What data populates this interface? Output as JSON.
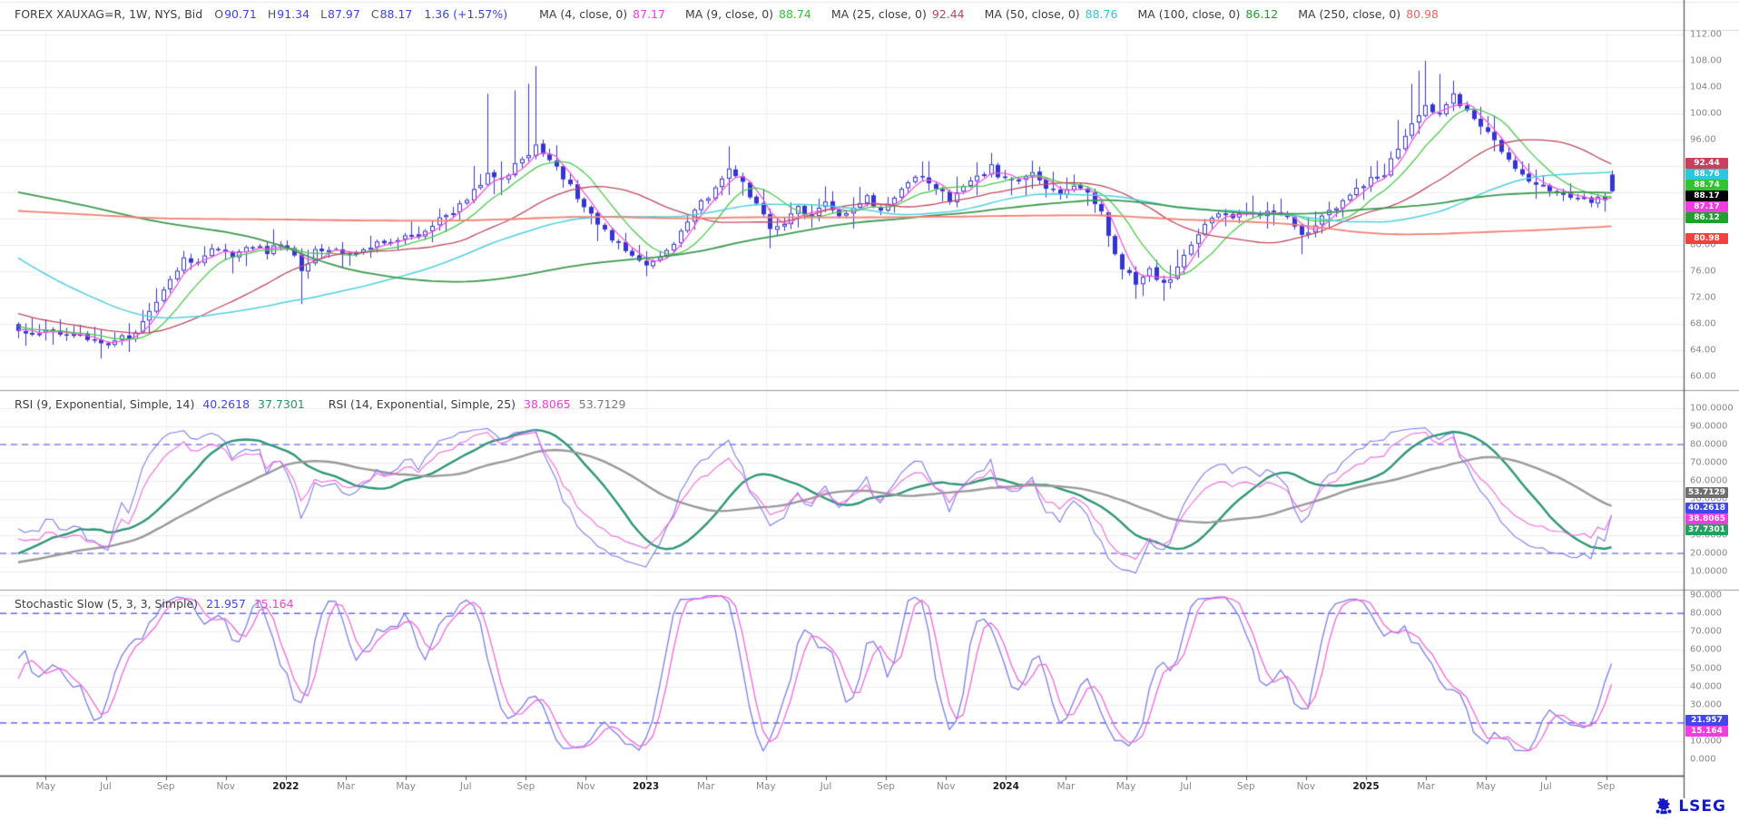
{
  "header": {
    "instrument": "FOREX XAUXAG=R, 1W, NYS, Bid",
    "ohlc": [
      {
        "label": "O",
        "value": "90.71"
      },
      {
        "label": "H",
        "value": "91.34"
      },
      {
        "label": "L",
        "value": "87.97"
      },
      {
        "label": "C",
        "value": "88.17"
      }
    ],
    "change": "1.36 (+1.57%)",
    "value_color": "#3c43ee",
    "mas": [
      {
        "label": "MA (4, close, 0)",
        "value": "87.17",
        "color": "#f03ce0"
      },
      {
        "label": "MA (9, close, 0)",
        "value": "88.74",
        "color": "#2fc52f"
      },
      {
        "label": "MA (25, close, 0)",
        "value": "92.44",
        "color": "#c8405c"
      },
      {
        "label": "MA (50, close, 0)",
        "value": "88.76",
        "color": "#2ac8dc"
      },
      {
        "label": "MA (100, close, 0)",
        "value": "86.12",
        "color": "#1da32b"
      },
      {
        "label": "MA (250, close, 0)",
        "value": "80.98",
        "color": "#f86060"
      }
    ]
  },
  "rsi": {
    "groups": [
      {
        "title": "RSI (9, Exponential, Simple, 14)",
        "values": [
          {
            "text": "40.2618",
            "color": "#4246ec"
          },
          {
            "text": "37.7301",
            "color": "#2a9467"
          }
        ]
      },
      {
        "title": "RSI (14, Exponential, Simple, 25)",
        "values": [
          {
            "text": "38.8065",
            "color": "#f03ce0"
          },
          {
            "text": "53.7129",
            "color": "#7a7a7a"
          }
        ]
      }
    ]
  },
  "stoch": {
    "title": "Stochastic Slow (5, 3, 3, Simple)",
    "values": [
      {
        "text": "21.957",
        "color": "#4246ec"
      },
      {
        "text": "15.164",
        "color": "#f03ce0"
      }
    ]
  },
  "axes": {
    "main_ticks": [
      {
        "v": 112,
        "t": "112.00"
      },
      {
        "v": 108,
        "t": "108.00"
      },
      {
        "v": 104,
        "t": "104.00"
      },
      {
        "v": 100,
        "t": "100.00"
      },
      {
        "v": 96,
        "t": "96.00"
      },
      {
        "v": 84,
        "t": "84.00"
      },
      {
        "v": 80,
        "t": "80.00"
      },
      {
        "v": 76,
        "t": "76.00"
      },
      {
        "v": 72,
        "t": "72.00"
      },
      {
        "v": 68,
        "t": "68.00"
      },
      {
        "v": 64,
        "t": "64.00"
      },
      {
        "v": 60,
        "t": "60.00"
      }
    ],
    "main_chips": [
      {
        "v": 92.44,
        "t": "92.44",
        "bg": "#c8405c"
      },
      {
        "v": 88.76,
        "t": "88.76",
        "bg": "#2ac8dc"
      },
      {
        "v": 88.74,
        "t": "88.74",
        "bg": "#2fc52f"
      },
      {
        "v": 88.17,
        "t": "88.17",
        "bg": "#000000"
      },
      {
        "v": 87.17,
        "t": "87.17",
        "bg": "#f03ce0"
      },
      {
        "v": 86.12,
        "t": "86.12",
        "bg": "#1da32b"
      },
      {
        "v": 80.98,
        "t": "80.98",
        "bg": "#f64040"
      }
    ],
    "rsi_ticks": [
      {
        "v": 100,
        "t": "100.0000"
      },
      {
        "v": 90,
        "t": "90.0000"
      },
      {
        "v": 80,
        "t": "80.0000"
      },
      {
        "v": 70,
        "t": "70.0000"
      },
      {
        "v": 60,
        "t": "60.0000"
      },
      {
        "v": 50,
        "t": "50.0000"
      },
      {
        "v": 30,
        "t": "30.0000"
      },
      {
        "v": 20,
        "t": "20.0000"
      },
      {
        "v": 10,
        "t": "10.0000"
      }
    ],
    "rsi_chips": [
      {
        "v": 53.7129,
        "t": "53.7129",
        "bg": "#6f6f6f"
      },
      {
        "v": 40.2618,
        "t": "40.2618",
        "bg": "#4246ec"
      },
      {
        "v": 38.8065,
        "t": "38.8065",
        "bg": "#f03ce0"
      },
      {
        "v": 37.7301,
        "t": "37.7301",
        "bg": "#1da35f"
      }
    ],
    "stoch_ticks": [
      {
        "v": 90,
        "t": "90.000"
      },
      {
        "v": 80,
        "t": "80.000"
      },
      {
        "v": 70,
        "t": "70.000"
      },
      {
        "v": 60,
        "t": "60.000"
      },
      {
        "v": 50,
        "t": "50.000"
      },
      {
        "v": 40,
        "t": "40.000"
      },
      {
        "v": 30,
        "t": "30.000"
      },
      {
        "v": 10,
        "t": "10.000"
      },
      {
        "v": 0,
        "t": "0.000"
      }
    ],
    "stoch_chips": [
      {
        "v": 21.957,
        "t": "21.957",
        "bg": "#4246ec"
      },
      {
        "v": 15.164,
        "t": "15.164",
        "bg": "#f03ce0"
      }
    ]
  },
  "dates": [
    {
      "t": "May"
    },
    {
      "t": "Jul"
    },
    {
      "t": "Sep"
    },
    {
      "t": "Nov"
    },
    {
      "t": "2022",
      "bold": true
    },
    {
      "t": "Mar"
    },
    {
      "t": "May"
    },
    {
      "t": "Jul"
    },
    {
      "t": "Sep"
    },
    {
      "t": "Nov"
    },
    {
      "t": "2023",
      "bold": true
    },
    {
      "t": "Mar"
    },
    {
      "t": "May"
    },
    {
      "t": "Jul"
    },
    {
      "t": "Sep"
    },
    {
      "t": "Nov"
    },
    {
      "t": "2024",
      "bold": true
    },
    {
      "t": "Mar"
    },
    {
      "t": "May"
    },
    {
      "t": "Jul"
    },
    {
      "t": "Sep"
    },
    {
      "t": "Nov"
    },
    {
      "t": "2025",
      "bold": true
    },
    {
      "t": "Mar"
    },
    {
      "t": "May"
    },
    {
      "t": "Jul"
    },
    {
      "t": "Sep"
    }
  ],
  "logo": {
    "text": "LSEG",
    "color": "#1519c8"
  },
  "chart_data": {
    "type": "candlestick",
    "title": "FOREX XAUXAG=R, 1W, NYS, Bid",
    "interval": "1W",
    "x_range": [
      "2021-04",
      "2025-09"
    ],
    "y_axis": {
      "min": 58,
      "max": 115
    },
    "last_candle": {
      "open": 90.71,
      "high": 91.34,
      "low": 87.97,
      "close": 88.17,
      "change": 1.36,
      "change_pct": 1.57
    },
    "prev_close": 86.81,
    "noise": 1.1,
    "prehistory": [
      [
        -260,
        80
      ],
      [
        -200,
        82
      ],
      [
        -150,
        84
      ],
      [
        -120,
        86
      ],
      [
        -90,
        88
      ],
      [
        -70,
        95
      ],
      [
        -62,
        113
      ],
      [
        -58,
        122
      ],
      [
        -54,
        110
      ],
      [
        -50,
        100
      ],
      [
        -45,
        95
      ],
      [
        -40,
        90
      ],
      [
        -35,
        85
      ],
      [
        -30,
        78
      ],
      [
        -25,
        74
      ],
      [
        -20,
        72
      ],
      [
        -15,
        70
      ],
      [
        -10,
        68.5
      ],
      [
        -5,
        67.5
      ]
    ],
    "close_anchors": [
      [
        0,
        67.3
      ],
      [
        2,
        66.2
      ],
      [
        4,
        67.0
      ],
      [
        7,
        66.5
      ],
      [
        10,
        65.6
      ],
      [
        13,
        64.9
      ],
      [
        16,
        66.2
      ],
      [
        18,
        68.0
      ],
      [
        20,
        71.0
      ],
      [
        22,
        74.5
      ],
      [
        24,
        78.0
      ],
      [
        26,
        77.0
      ],
      [
        28,
        79.3
      ],
      [
        31,
        78.2
      ],
      [
        34,
        79.8
      ],
      [
        36,
        78.8
      ],
      [
        38,
        80.0
      ],
      [
        40,
        78.0
      ],
      [
        41,
        75.8
      ],
      [
        43,
        79.0
      ],
      [
        46,
        79.3
      ],
      [
        49,
        78.6
      ],
      [
        52,
        80.2
      ],
      [
        55,
        80.8
      ],
      [
        58,
        81.5
      ],
      [
        61,
        83.8
      ],
      [
        64,
        86.0
      ],
      [
        66,
        88.5
      ],
      [
        68,
        90.5
      ],
      [
        70,
        89.5
      ],
      [
        72,
        92.0
      ],
      [
        75,
        94.8
      ],
      [
        77,
        93.0
      ],
      [
        79,
        90.0
      ],
      [
        81,
        87.5
      ],
      [
        83,
        85.0
      ],
      [
        85,
        82.0
      ],
      [
        87,
        79.8
      ],
      [
        89,
        78.0
      ],
      [
        91,
        77.2
      ],
      [
        93,
        78.5
      ],
      [
        95,
        80.5
      ],
      [
        97,
        83.5
      ],
      [
        99,
        86.5
      ],
      [
        101,
        88.5
      ],
      [
        103,
        91.5
      ],
      [
        105,
        89.5
      ],
      [
        107,
        86.0
      ],
      [
        109,
        82.5
      ],
      [
        111,
        83.5
      ],
      [
        113,
        85.5
      ],
      [
        115,
        84.2
      ],
      [
        117,
        86.3
      ],
      [
        119,
        84.2
      ],
      [
        121,
        85.8
      ],
      [
        123,
        87.3
      ],
      [
        125,
        85.4
      ],
      [
        127,
        86.8
      ],
      [
        129,
        89.2
      ],
      [
        131,
        90.8
      ],
      [
        133,
        88.8
      ],
      [
        135,
        87.0
      ],
      [
        137,
        88.8
      ],
      [
        139,
        90.3
      ],
      [
        141,
        91.8
      ],
      [
        143,
        89.8
      ],
      [
        145,
        89.4
      ],
      [
        147,
        90.8
      ],
      [
        149,
        89.0
      ],
      [
        151,
        87.6
      ],
      [
        153,
        88.8
      ],
      [
        155,
        88.0
      ],
      [
        157,
        85.0
      ],
      [
        158,
        81.5
      ],
      [
        160,
        76.5
      ],
      [
        162,
        74.0
      ],
      [
        164,
        76.0
      ],
      [
        166,
        73.8
      ],
      [
        168,
        76.8
      ],
      [
        170,
        79.8
      ],
      [
        172,
        82.8
      ],
      [
        174,
        84.8
      ],
      [
        176,
        84.0
      ],
      [
        178,
        85.3
      ],
      [
        180,
        84.2
      ],
      [
        182,
        85.5
      ],
      [
        184,
        83.8
      ],
      [
        186,
        81.2
      ],
      [
        188,
        83.0
      ],
      [
        190,
        85.0
      ],
      [
        192,
        86.8
      ],
      [
        194,
        88.2
      ],
      [
        196,
        89.8
      ],
      [
        198,
        90.8
      ],
      [
        200,
        94.5
      ],
      [
        202,
        98.5
      ],
      [
        204,
        101.5
      ],
      [
        206,
        99.5
      ],
      [
        208,
        102.5
      ],
      [
        210,
        100.0
      ],
      [
        212,
        98.0
      ],
      [
        214,
        95.5
      ],
      [
        216,
        93.0
      ],
      [
        218,
        91.0
      ],
      [
        220,
        89.2
      ],
      [
        222,
        88.3
      ],
      [
        224,
        87.6
      ],
      [
        226,
        87.2
      ],
      [
        228,
        86.9
      ],
      [
        230,
        86.81
      ],
      [
        231,
        88.17
      ]
    ],
    "wick_high": [
      [
        66,
        92
      ],
      [
        68,
        103
      ],
      [
        72,
        103.5
      ],
      [
        74,
        104.5
      ],
      [
        75,
        107.2
      ],
      [
        103,
        95
      ],
      [
        141,
        94
      ],
      [
        196,
        92
      ],
      [
        200,
        99
      ],
      [
        202,
        104.5
      ],
      [
        203,
        106.5
      ],
      [
        204,
        108
      ],
      [
        206,
        106
      ],
      [
        208,
        105
      ],
      [
        212,
        101
      ]
    ],
    "wick_low": [
      [
        41,
        71
      ],
      [
        109,
        79.5
      ],
      [
        162,
        71.8
      ],
      [
        166,
        71.5
      ],
      [
        186,
        78.6
      ],
      [
        220,
        87
      ]
    ],
    "moving_averages": [
      {
        "period": 4,
        "value": 87.17,
        "color": "#f556e0",
        "width": 1.3
      },
      {
        "period": 9,
        "value": 88.74,
        "color": "#4ccc4c",
        "width": 1.3
      },
      {
        "period": 25,
        "value": 92.44,
        "color": "#c04b60",
        "width": 1.3
      },
      {
        "period": 50,
        "value": 88.76,
        "color": "#4fd0e2",
        "width": 1.5
      },
      {
        "period": 100,
        "value": 86.12,
        "color": "#3d9a50",
        "width": 1.8
      },
      {
        "period": 250,
        "value": 80.98,
        "color": "#f28173",
        "width": 1.8
      }
    ],
    "indicators": [
      {
        "name": "RSI",
        "params": "9, Exponential, Simple, 14",
        "value": 40.2618,
        "ma_value": 37.7301,
        "levels": [
          80,
          20
        ]
      },
      {
        "name": "RSI",
        "params": "14, Exponential, Simple, 25",
        "value": 38.8065,
        "ma_value": 53.7129,
        "levels": [
          80,
          20
        ]
      },
      {
        "name": "Stochastic Slow",
        "params": "5, 3, 3, Simple",
        "k": 21.957,
        "d": 15.164,
        "levels": [
          80,
          20
        ]
      }
    ]
  }
}
